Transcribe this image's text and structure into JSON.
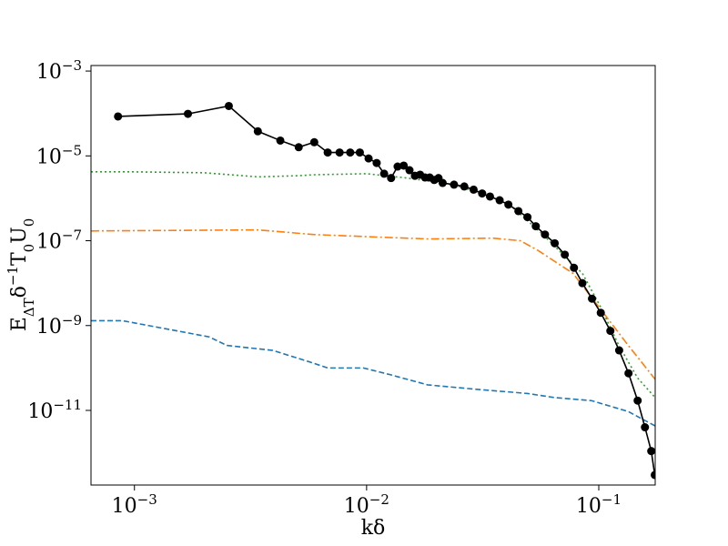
{
  "chart_data": {
    "type": "line",
    "xlabel": "kδ",
    "ylabel": "EΔTδ−1T0U0",
    "xscale": "log",
    "yscale": "log",
    "xlim": [
      0.00065,
      0.175
    ],
    "ylim": [
      1.74e-13,
      0.00135
    ],
    "xticks": [
      {
        "value": 0.001,
        "label": "10−3"
      },
      {
        "value": 0.01,
        "label": "10−2"
      },
      {
        "value": 0.1,
        "label": "10−1"
      }
    ],
    "yticks": [
      {
        "value": 1e-11,
        "label": "10−11"
      },
      {
        "value": 1e-09,
        "label": "10−9"
      },
      {
        "value": 1e-07,
        "label": "10−7"
      },
      {
        "value": 1e-05,
        "label": "10−5"
      },
      {
        "value": 0.001,
        "label": "10−3"
      }
    ],
    "series": [
      {
        "color": "#1f77b4",
        "style": "dashed",
        "x": [
          0.00065,
          0.00089,
          0.0021,
          0.0025,
          0.00394,
          0.00566,
          0.0068,
          0.0097,
          0.0127,
          0.0183,
          0.0287,
          0.0494,
          0.0648,
          0.093,
          0.134,
          0.175
        ],
        "values": [
          1.3e-09,
          1.3e-09,
          5.4e-10,
          3.4e-10,
          2.6e-10,
          1.4e-10,
          1e-10,
          1e-10,
          6.9e-11,
          4e-11,
          3.2e-11,
          2.5e-11,
          2e-11,
          1.7e-11,
          9.4e-12,
          4.3e-12
        ]
      },
      {
        "color": "#ff7f0e",
        "style": "dashdot",
        "x": [
          0.00065,
          0.0034,
          0.0059,
          0.012,
          0.0186,
          0.035,
          0.046,
          0.055,
          0.0775,
          0.102,
          0.134,
          0.175
        ],
        "values": [
          1.7e-07,
          1.8e-07,
          1.4e-07,
          1.2e-07,
          1.1e-07,
          1.15e-07,
          1e-07,
          5.8e-08,
          1.7e-08,
          2.4e-09,
          3.4e-10,
          5.4e-11
        ]
      },
      {
        "color": "#2ca02c",
        "style": "dotted",
        "x": [
          0.00065,
          0.001,
          0.002,
          0.0034,
          0.005,
          0.006,
          0.01,
          0.015,
          0.02,
          0.025,
          0.0316,
          0.041,
          0.056,
          0.085,
          0.102,
          0.122,
          0.147,
          0.175
        ],
        "values": [
          4.2e-06,
          4.2e-06,
          4e-06,
          3.2e-06,
          3.4e-06,
          3.6e-06,
          3.8e-06,
          3e-06,
          2.4e-06,
          1.9e-06,
          1.3e-06,
          7.3e-07,
          1.6e-07,
          1.7e-08,
          2.7e-09,
          3.4e-10,
          5.8e-11,
          2e-11
        ]
      },
      {
        "color": "#000000",
        "style": "solid",
        "markers": true,
        "x": [
          0.00085,
          0.0017,
          0.00255,
          0.0034,
          0.00425,
          0.0051,
          0.00595,
          0.0068,
          0.00765,
          0.0085,
          0.00935,
          0.0102,
          0.01105,
          0.0119,
          0.01275,
          0.0136,
          0.01445,
          0.0153,
          0.01615,
          0.017,
          0.01785,
          0.0187,
          0.01955,
          0.0204,
          0.02125,
          0.0238,
          0.02635,
          0.0289,
          0.03145,
          0.034,
          0.0374,
          0.0408,
          0.04505,
          0.0493,
          0.05355,
          0.05865,
          0.0646,
          0.0714,
          0.0782,
          0.085,
          0.0935,
          0.102,
          0.1122,
          0.1224,
          0.1343,
          0.14705,
          0.1581,
          0.1683,
          0.17425
        ],
        "values": [
          8.5e-05,
          9.8e-05,
          0.00015,
          3.8e-05,
          2.3e-05,
          1.6e-05,
          2.1e-05,
          1.2e-05,
          1.2e-05,
          1.2e-05,
          1.2e-05,
          8.7e-06,
          6.8e-06,
          3.8e-06,
          3e-06,
          5.6e-06,
          5.9e-06,
          4.6e-06,
          3.4e-06,
          3.6e-06,
          3.1e-06,
          3.1e-06,
          2.7e-06,
          3e-06,
          2.3e-06,
          2.1e-06,
          1.9e-06,
          1.6e-06,
          1.3e-06,
          1.1e-06,
          9e-07,
          7.1e-07,
          5e-07,
          3.6e-07,
          2.2e-07,
          1.4e-07,
          8.7e-08,
          4.7e-08,
          2.3e-08,
          1e-08,
          4.3e-09,
          2e-09,
          7.5e-10,
          2.6e-10,
          7.5e-11,
          1.7e-11,
          4e-12,
          1.1e-12,
          3e-13
        ]
      }
    ]
  }
}
